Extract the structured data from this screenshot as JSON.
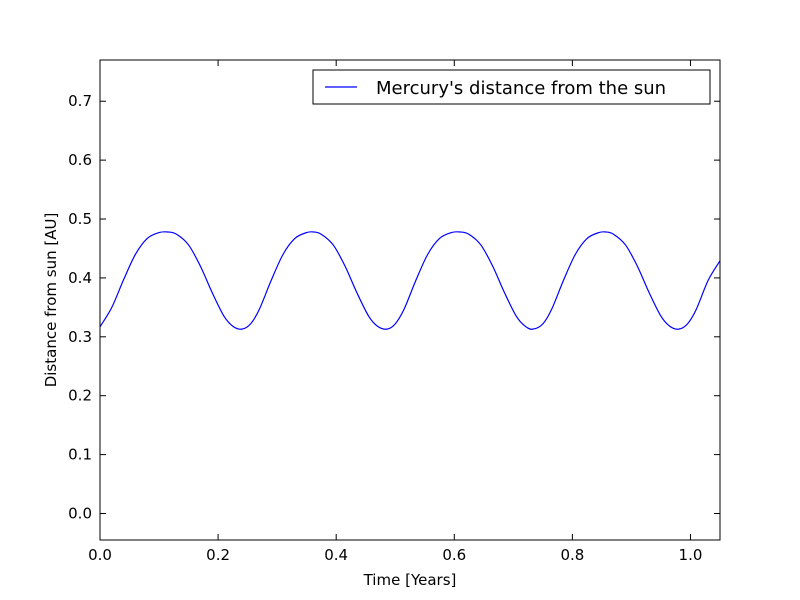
{
  "chart_data": {
    "type": "line",
    "title": "",
    "xlabel": "Time [Years]",
    "ylabel": "Distance from sun [AU]",
    "xlim": [
      0.0,
      1.05
    ],
    "ylim": [
      -0.045,
      0.77
    ],
    "xticks": [
      "0.0",
      "0.2",
      "0.4",
      "0.6",
      "0.8",
      "1.0"
    ],
    "yticks": [
      "0.0",
      "0.1",
      "0.2",
      "0.3",
      "0.4",
      "0.5",
      "0.6",
      "0.7"
    ],
    "grid": false,
    "legend_position": "top-right",
    "series": [
      {
        "name": "Mercury's distance from the sun",
        "color": "#0000ff",
        "x": [
          0.0,
          0.02,
          0.04,
          0.06,
          0.08,
          0.1,
          0.115,
          0.13,
          0.15,
          0.17,
          0.19,
          0.21,
          0.225,
          0.24,
          0.255,
          0.27,
          0.29,
          0.31,
          0.33,
          0.35,
          0.362,
          0.375,
          0.395,
          0.415,
          0.435,
          0.455,
          0.47,
          0.486,
          0.5,
          0.515,
          0.535,
          0.555,
          0.575,
          0.595,
          0.61,
          0.625,
          0.645,
          0.665,
          0.685,
          0.705,
          0.72,
          0.733,
          0.75,
          0.765,
          0.785,
          0.805,
          0.825,
          0.845,
          0.857,
          0.87,
          0.89,
          0.91,
          0.93,
          0.95,
          0.965,
          0.98,
          0.995,
          1.01,
          1.03,
          1.05
        ],
        "y": [
          0.317,
          0.35,
          0.397,
          0.44,
          0.467,
          0.477,
          0.478,
          0.474,
          0.456,
          0.42,
          0.375,
          0.335,
          0.318,
          0.313,
          0.322,
          0.347,
          0.396,
          0.44,
          0.467,
          0.477,
          0.478,
          0.474,
          0.456,
          0.42,
          0.375,
          0.335,
          0.318,
          0.313,
          0.322,
          0.347,
          0.396,
          0.44,
          0.467,
          0.477,
          0.478,
          0.474,
          0.456,
          0.42,
          0.375,
          0.335,
          0.318,
          0.313,
          0.322,
          0.347,
          0.396,
          0.44,
          0.467,
          0.477,
          0.478,
          0.474,
          0.456,
          0.42,
          0.375,
          0.335,
          0.318,
          0.313,
          0.322,
          0.347,
          0.396,
          0.429
        ]
      }
    ]
  }
}
